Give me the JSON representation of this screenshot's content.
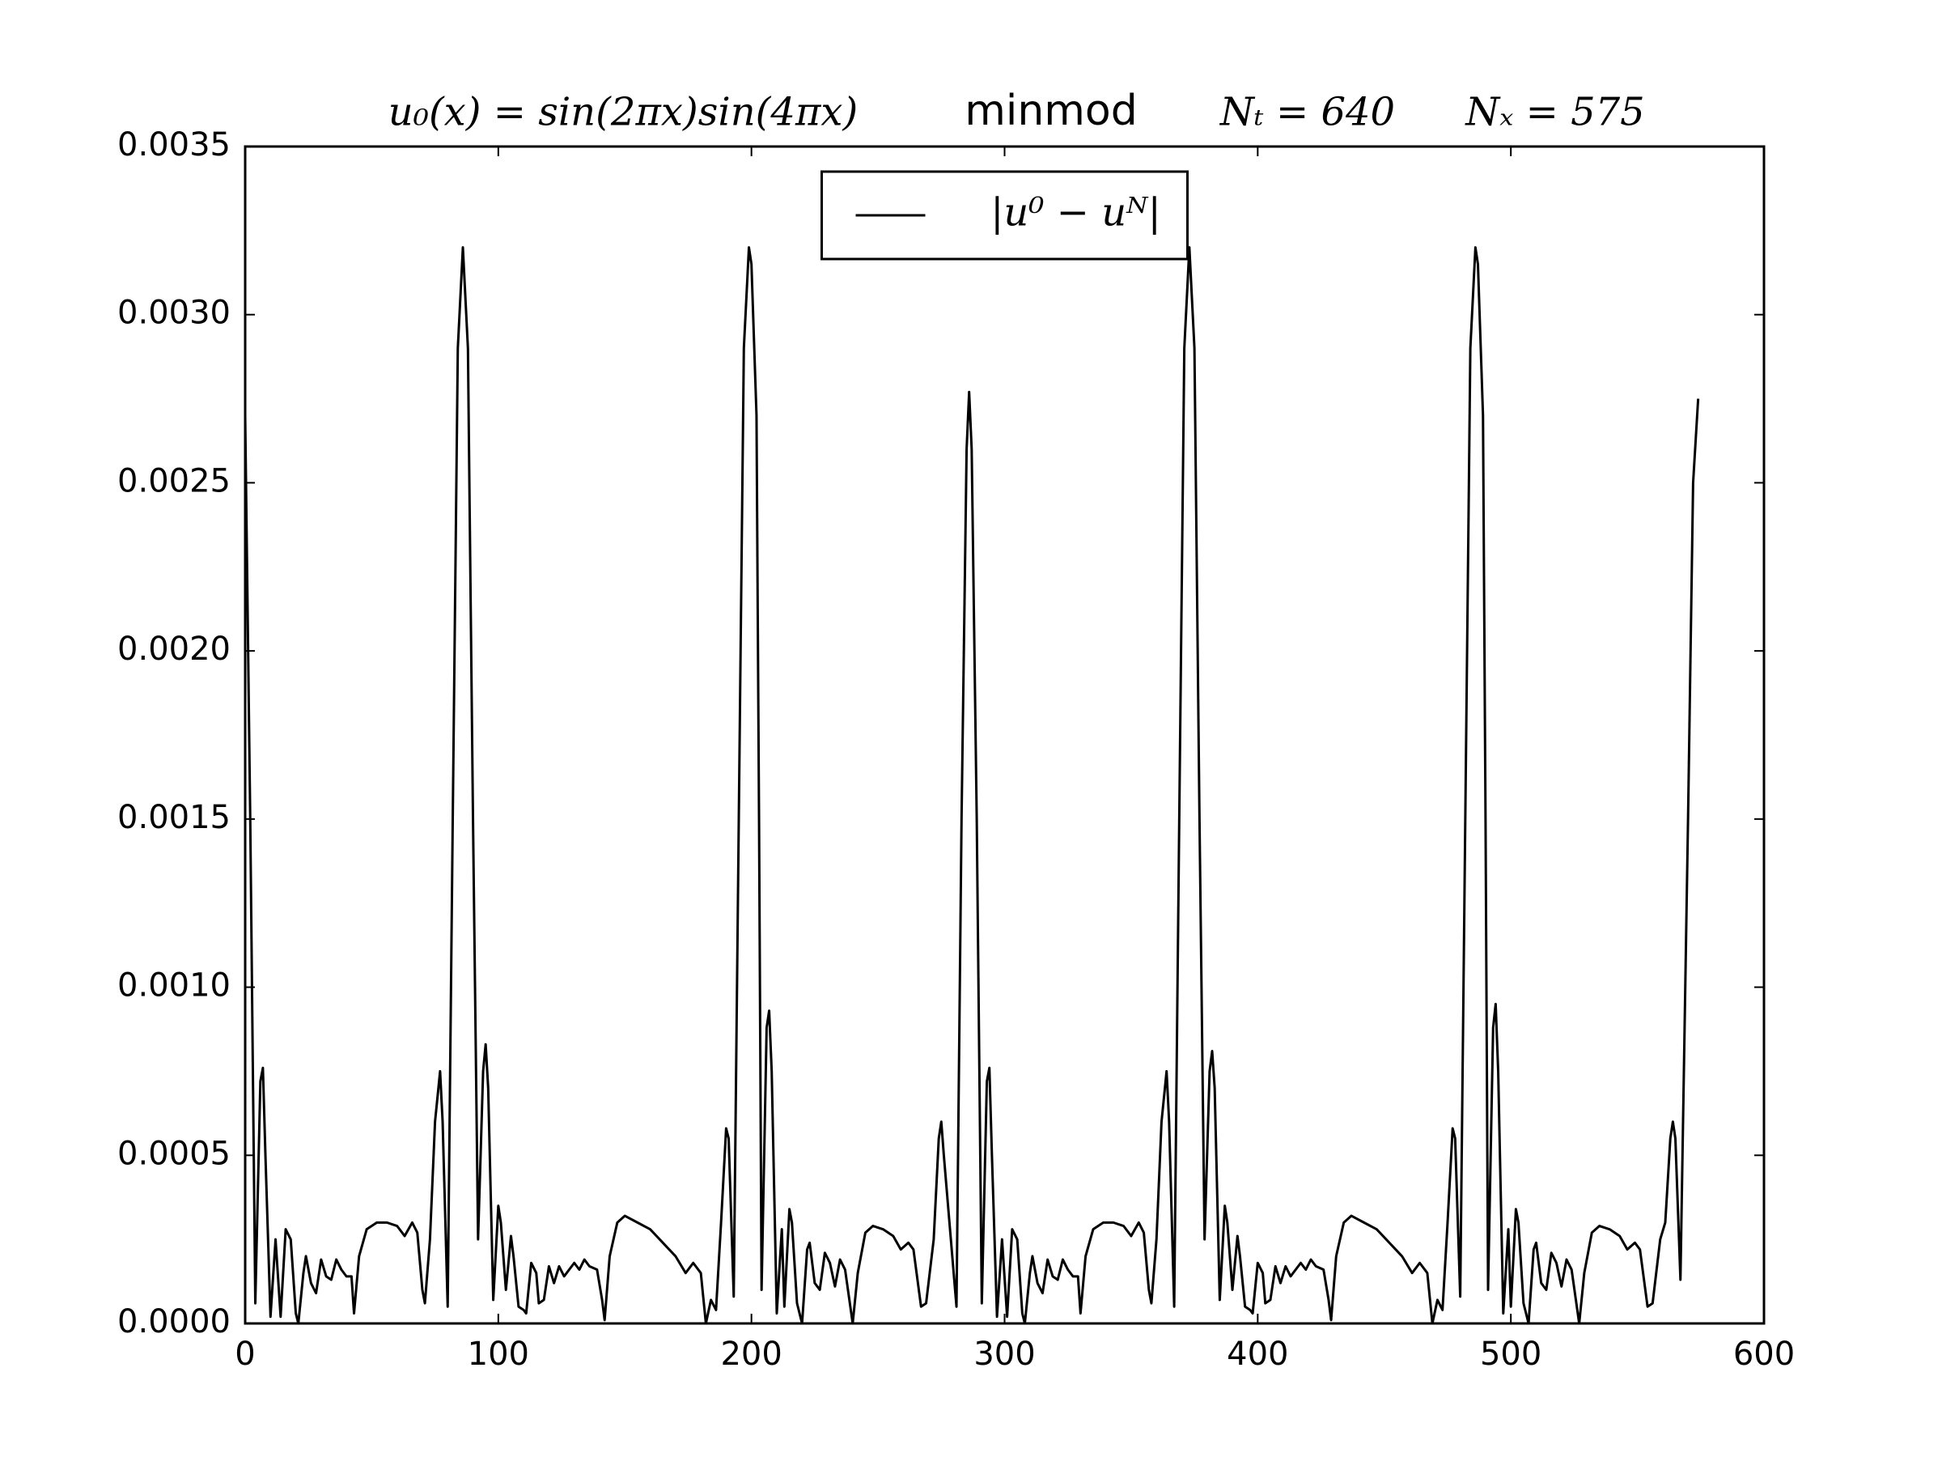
{
  "chart_data": {
    "type": "line",
    "title": [
      "u₀(x) = sin(2πx)sin(4πx)",
      "minmod",
      "Nₜ = 640",
      "Nₓ = 575"
    ],
    "x": [
      0,
      2,
      4,
      6,
      7,
      8,
      10,
      12,
      14,
      16,
      18,
      20,
      21,
      23,
      24,
      26,
      28,
      30,
      32,
      34,
      36,
      38,
      40,
      42,
      43,
      45,
      48,
      52,
      56,
      60,
      63,
      66,
      68,
      70,
      71,
      73,
      75,
      77,
      78,
      80,
      82,
      84,
      86,
      88,
      90,
      92,
      94,
      95,
      96,
      98,
      100,
      101,
      103,
      105,
      106,
      108,
      110,
      111,
      113,
      115,
      116,
      118,
      120,
      122,
      124,
      126,
      128,
      130,
      132,
      134,
      136,
      139,
      141,
      142,
      144,
      147,
      150,
      155,
      160,
      165,
      170,
      174,
      177,
      180,
      182,
      184,
      186,
      188,
      190,
      191,
      193,
      195,
      197,
      199,
      200,
      202,
      203,
      204,
      206,
      207,
      208,
      210,
      212,
      213,
      215,
      216,
      218,
      220,
      222,
      223,
      225,
      227,
      229,
      231,
      233,
      235,
      237,
      240,
      242,
      245,
      248,
      252,
      256,
      259,
      262,
      264,
      267,
      269,
      272,
      274,
      275,
      276,
      281,
      283,
      285,
      286,
      287,
      289,
      291,
      293,
      294,
      295,
      297,
      299,
      301,
      303,
      305,
      307,
      308,
      310,
      311,
      313,
      315,
      317,
      319,
      321,
      323,
      325,
      327,
      329,
      330,
      332,
      335,
      339,
      343,
      347,
      350,
      353,
      355,
      357,
      358,
      360,
      362,
      364,
      365,
      367,
      369,
      371,
      373,
      375,
      377,
      379,
      381,
      382,
      383,
      385,
      387,
      388,
      390,
      392,
      393,
      395,
      397,
      398,
      400,
      402,
      403,
      405,
      407,
      409,
      411,
      413,
      415,
      417,
      419,
      421,
      423,
      426,
      428,
      429,
      431,
      434,
      437,
      442,
      447,
      452,
      457,
      461,
      464,
      467,
      469,
      471,
      473,
      475,
      477,
      478,
      480,
      482,
      484,
      486,
      487,
      489,
      490,
      491,
      493,
      494,
      495,
      497,
      499,
      500,
      502,
      503,
      505,
      507,
      509,
      510,
      512,
      514,
      516,
      518,
      520,
      522,
      524,
      527,
      529,
      532,
      535,
      539,
      543,
      546,
      549,
      551,
      554,
      556,
      559,
      561,
      563,
      564,
      565,
      567,
      570,
      572,
      574
    ],
    "series": [
      {
        "name": "|u⁰ − uᴺ|",
        "color": "#000000",
        "values": [
          0.0027,
          0.0015,
          6e-05,
          0.00072,
          0.00076,
          0.0005,
          2e-05,
          0.00025,
          2e-05,
          0.00028,
          0.00025,
          3e-05,
          0,
          0.00015,
          0.0002,
          0.00012,
          9e-05,
          0.00019,
          0.00014,
          0.00013,
          0.00019,
          0.00016,
          0.00014,
          0.00014,
          3e-05,
          0.0002,
          0.00028,
          0.0003,
          0.0003,
          0.00029,
          0.00026,
          0.0003,
          0.00027,
          0.0001,
          6e-05,
          0.00025,
          0.0006,
          0.00075,
          0.0006,
          5e-05,
          0.0015,
          0.0029,
          0.0032,
          0.0029,
          0.0015,
          0.00025,
          0.00075,
          0.00083,
          0.0007,
          7e-05,
          0.00035,
          0.0003,
          0.0001,
          0.00026,
          0.0002,
          5e-05,
          4e-05,
          3e-05,
          0.00018,
          0.00015,
          6e-05,
          7e-05,
          0.00017,
          0.00012,
          0.00017,
          0.00014,
          0.00016,
          0.00018,
          0.00016,
          0.00019,
          0.00017,
          0.00016,
          7e-05,
          1e-05,
          0.0002,
          0.0003,
          0.00032,
          0.0003,
          0.00028,
          0.00024,
          0.0002,
          0.00015,
          0.00018,
          0.00015,
          0,
          7e-05,
          4e-05,
          0.0003,
          0.00058,
          0.00055,
          8e-05,
          0.0015,
          0.0029,
          0.0032,
          0.00315,
          0.0027,
          0.0015,
          0.0001,
          0.00088,
          0.00093,
          0.00075,
          3e-05,
          0.00028,
          5e-05,
          0.00034,
          0.0003,
          6e-05,
          0,
          0.00022,
          0.00024,
          0.00012,
          0.0001,
          0.00021,
          0.00018,
          0.00011,
          0.00019,
          0.00016,
          0,
          0.00015,
          0.00027,
          0.00029,
          0.00028,
          0.00026,
          0.00022,
          0.00024,
          0.00022,
          5e-05,
          6e-05,
          0.00025,
          0.00055,
          0.0006,
          0.0005,
          5e-05,
          0.0015,
          0.0026,
          0.00277,
          0.0026,
          0.0015,
          6e-05,
          0.00072,
          0.00076,
          0.0005,
          2e-05,
          0.00025,
          2e-05,
          0.00028,
          0.00025,
          3e-05,
          0,
          0.00015,
          0.0002,
          0.00012,
          9e-05,
          0.00019,
          0.00014,
          0.00013,
          0.00019,
          0.00016,
          0.00014,
          0.00014,
          3e-05,
          0.0002,
          0.00028,
          0.0003,
          0.0003,
          0.00029,
          0.00026,
          0.0003,
          0.00027,
          0.0001,
          6e-05,
          0.00025,
          0.0006,
          0.00075,
          0.0006,
          5e-05,
          0.0015,
          0.0029,
          0.0032,
          0.0029,
          0.0015,
          0.00025,
          0.00075,
          0.00081,
          0.0007,
          7e-05,
          0.00035,
          0.0003,
          0.0001,
          0.00026,
          0.0002,
          5e-05,
          4e-05,
          3e-05,
          0.00018,
          0.00015,
          6e-05,
          7e-05,
          0.00017,
          0.00012,
          0.00017,
          0.00014,
          0.00016,
          0.00018,
          0.00016,
          0.00019,
          0.00017,
          0.00016,
          7e-05,
          1e-05,
          0.0002,
          0.0003,
          0.00032,
          0.0003,
          0.00028,
          0.00024,
          0.0002,
          0.00015,
          0.00018,
          0.00015,
          0,
          7e-05,
          4e-05,
          0.0003,
          0.00058,
          0.00055,
          8e-05,
          0.0015,
          0.0029,
          0.0032,
          0.00315,
          0.0027,
          0.0015,
          0.0001,
          0.00088,
          0.00095,
          0.00075,
          3e-05,
          0.00028,
          5e-05,
          0.00034,
          0.0003,
          6e-05,
          0,
          0.00022,
          0.00024,
          0.00012,
          0.0001,
          0.00021,
          0.00018,
          0.00011,
          0.00019,
          0.00016,
          0,
          0.00015,
          0.00027,
          0.00029,
          0.00028,
          0.00026,
          0.00022,
          0.00024,
          0.00022,
          5e-05,
          6e-05,
          0.00025,
          0.0003,
          0.00055,
          0.0006,
          0.00055,
          0.00013,
          0.0015,
          0.0025,
          0.00275
        ]
      }
    ],
    "xlim": [
      0,
      600
    ],
    "xticks": [
      0,
      100,
      200,
      300,
      400,
      500,
      600
    ],
    "ylim": [
      0,
      0.0035
    ],
    "yticks": [
      {
        "value": 0,
        "label": "0.0000"
      },
      {
        "value": 0.0005,
        "label": "0.0005"
      },
      {
        "value": 0.001,
        "label": "0.0010"
      },
      {
        "value": 0.0015,
        "label": "0.0015"
      },
      {
        "value": 0.002,
        "label": "0.0020"
      },
      {
        "value": 0.0025,
        "label": "0.0025"
      },
      {
        "value": 0.003,
        "label": "0.0030"
      },
      {
        "value": 0.0035,
        "label": "0.0035"
      }
    ],
    "grid": false,
    "legend": "upper center"
  }
}
